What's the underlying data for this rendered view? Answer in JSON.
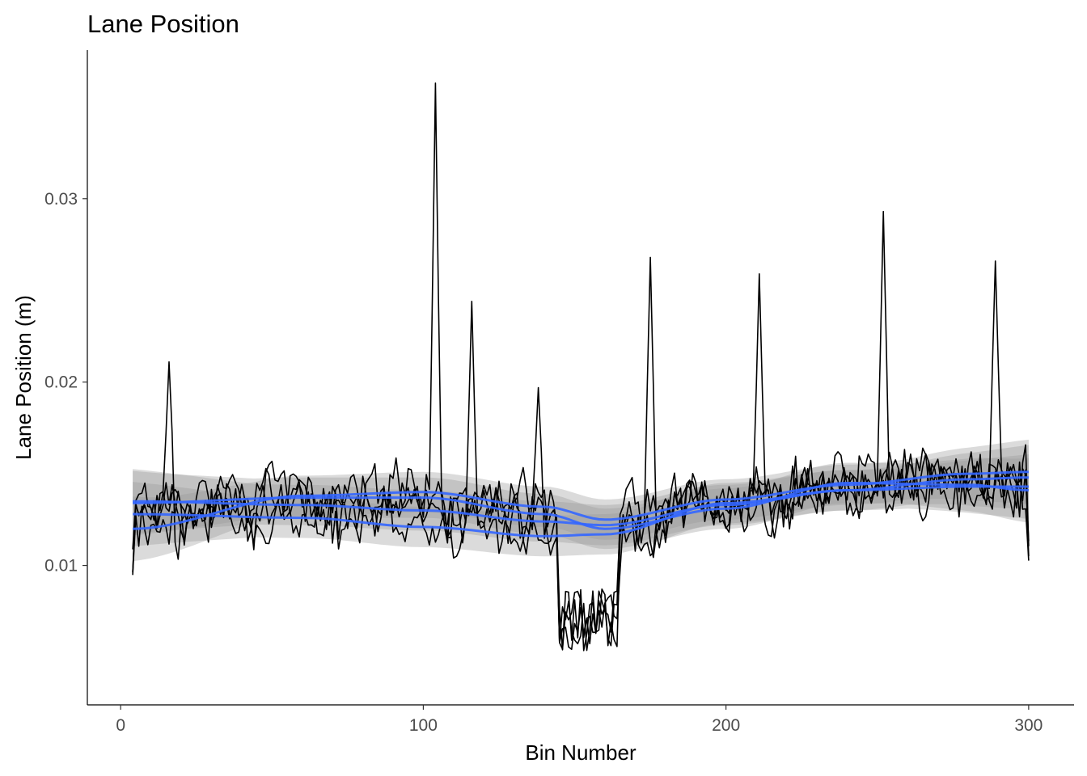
{
  "chart_data": {
    "type": "line",
    "title": "Lane Position",
    "xlabel": "Bin Number",
    "ylabel": "Lane Position (m)",
    "xlim": [
      -11,
      315
    ],
    "ylim": [
      0.0024,
      0.0381
    ],
    "x_ticks": [
      0,
      100,
      200,
      300
    ],
    "x_tick_labels": [
      "0",
      "100",
      "200",
      "300"
    ],
    "y_ticks": [
      0.01,
      0.02,
      0.03
    ],
    "y_tick_labels": [
      "0.01",
      "0.02",
      "0.03"
    ],
    "grid": false,
    "legend": "none",
    "colors": {
      "raw_line": "#000000",
      "smooth_line": "#3366FF",
      "ribbon": "#999999",
      "axis": "#000000",
      "tick_label": "#4d4d4d"
    },
    "x_range": [
      4,
      300
    ],
    "trend_anchor_x": [
      4,
      60,
      100,
      140,
      160,
      200,
      240,
      280,
      300
    ],
    "series": [
      {
        "kind": "raw",
        "base": 0.0132,
        "noise": 0.0037,
        "seed": 11,
        "spikes": [
          {
            "x": 104,
            "y": 0.0363
          },
          {
            "x": 252,
            "y": 0.0293
          }
        ]
      },
      {
        "kind": "raw",
        "base": 0.0131,
        "noise": 0.0036,
        "seed": 29,
        "spikes": [
          {
            "x": 175,
            "y": 0.0268
          },
          {
            "x": 289,
            "y": 0.0266
          }
        ]
      },
      {
        "kind": "raw",
        "base": 0.0134,
        "noise": 0.0035,
        "seed": 47,
        "spikes": [
          {
            "x": 116,
            "y": 0.0244
          },
          {
            "x": 211,
            "y": 0.0259
          }
        ]
      },
      {
        "kind": "raw",
        "base": 0.013,
        "noise": 0.0038,
        "seed": 83,
        "spikes": [
          {
            "x": 138,
            "y": 0.0197
          },
          {
            "x": 16,
            "y": 0.0211
          }
        ]
      }
    ],
    "dip": {
      "x_start": 145,
      "x_end": 164,
      "level": 0.007
    },
    "smooth_series": [
      {
        "y": [
          0.0135,
          0.0133,
          0.013,
          0.0124,
          0.0122,
          0.0133,
          0.0141,
          0.0147,
          0.0148
        ]
      },
      {
        "y": [
          0.012,
          0.0138,
          0.014,
          0.0132,
          0.0125,
          0.0136,
          0.0144,
          0.015,
          0.0151
        ]
      },
      {
        "y": [
          0.0128,
          0.0126,
          0.0121,
          0.0116,
          0.0117,
          0.0134,
          0.0141,
          0.0143,
          0.0143
        ]
      },
      {
        "y": [
          0.0134,
          0.0137,
          0.0137,
          0.0128,
          0.012,
          0.0131,
          0.0145,
          0.0144,
          0.0141
        ]
      }
    ],
    "ribbon_halfwidth": 0.0011
  }
}
